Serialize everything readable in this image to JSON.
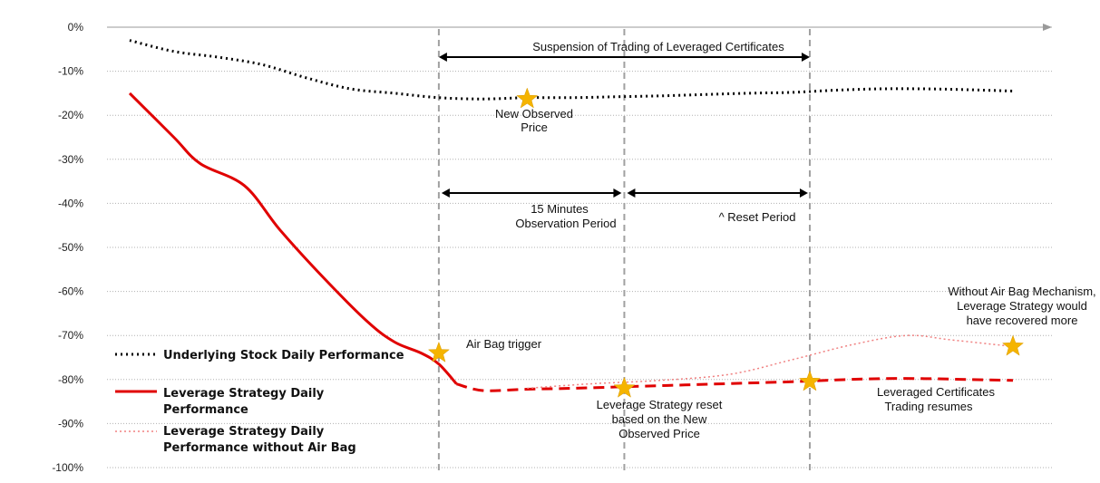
{
  "chart_data": {
    "type": "line",
    "ylim": [
      -100,
      0
    ],
    "ytick_labels": [
      "0%",
      "-10%",
      "-20%",
      "-30%",
      "-40%",
      "-50%",
      "-60%",
      "-70%",
      "-80%",
      "-90%",
      "-100%"
    ],
    "yticks": [
      0,
      -10,
      -20,
      -30,
      -40,
      -50,
      -60,
      -70,
      -80,
      -90,
      -100
    ],
    "grid": true,
    "series": [
      {
        "name": "Underlying Stock Daily Performance",
        "color": "#000000",
        "style": "dotted",
        "x": [
          0,
          5,
          10,
          15,
          20,
          25,
          30,
          35,
          40,
          45,
          50,
          55,
          60,
          65,
          70,
          75,
          80,
          85,
          90,
          95,
          100
        ],
        "values": [
          -3,
          -5.5,
          -6.8,
          -8.5,
          -11.5,
          -14,
          -15,
          -16,
          -16.3,
          -16,
          -16,
          -15.8,
          -15.6,
          -15.3,
          -15,
          -14.8,
          -14.3,
          -14,
          -14,
          -14.2,
          -14.5
        ]
      },
      {
        "name": "Leverage Strategy Daily Performance",
        "color": "#e00000",
        "style": "solid-then-dashed",
        "x": [
          0,
          5,
          8,
          13,
          17,
          22,
          27,
          30,
          33,
          35,
          37,
          40,
          45,
          50,
          55,
          60,
          65,
          70,
          75,
          80,
          85,
          90,
          95,
          100
        ],
        "values": [
          -15,
          -25,
          -31,
          -36,
          -46,
          -57,
          -67,
          -71.5,
          -74,
          -76.5,
          -81,
          -82.5,
          -82.2,
          -82,
          -81.7,
          -81.4,
          -81.1,
          -80.8,
          -80.5,
          -80.1,
          -79.8,
          -79.8,
          -80,
          -80.2
        ],
        "dashed_from_x": 37
      },
      {
        "name": "Leverage Strategy Daily Performance without Air Bag",
        "color": "#f08080",
        "style": "dotted",
        "x": [
          45,
          52,
          60,
          68,
          75,
          82,
          88,
          93,
          100
        ],
        "values": [
          -82,
          -81,
          -80.2,
          -78.8,
          -75.5,
          -72,
          -70,
          -71,
          -72.5
        ]
      }
    ],
    "vertical_lines_x": [
      35,
      56,
      77
    ],
    "stars": [
      {
        "x": 35,
        "y": -74
      },
      {
        "x": 45,
        "y": -16.3
      },
      {
        "x": 56,
        "y": -82
      },
      {
        "x": 77,
        "y": -80.5
      },
      {
        "x": 100,
        "y": -72.5
      }
    ],
    "annotations": {
      "suspension": "Suspension of  Trading of Leveraged Certificates",
      "new_observed_price": [
        "New Observed",
        "Price"
      ],
      "observation_period": [
        "15 Minutes",
        "Observation Period"
      ],
      "reset_period": "^ Reset Period",
      "air_bag_trigger": "Air Bag trigger",
      "leverage_reset": [
        "Leverage Strategy reset",
        "based on the New",
        "Observed Price"
      ],
      "trading_resumes": [
        "Leveraged Certificates",
        "Trading resumes"
      ],
      "without_air_bag": [
        "Without Air Bag Mechanism,",
        "Leverage Strategy would",
        "have recovered more"
      ]
    },
    "legend": {
      "placement": "bottom-left",
      "entries": [
        [
          "Underlying Stock Daily Performance"
        ],
        [
          "Leverage Strategy Daily",
          "Performance"
        ],
        [
          "Leverage Strategy Daily",
          "Performance without Air Bag"
        ]
      ]
    },
    "colors": {
      "star": "#f5b400",
      "grid": "#b0b0b0",
      "vline": "#a0a0a0",
      "axis": "#9a9a9a"
    }
  }
}
